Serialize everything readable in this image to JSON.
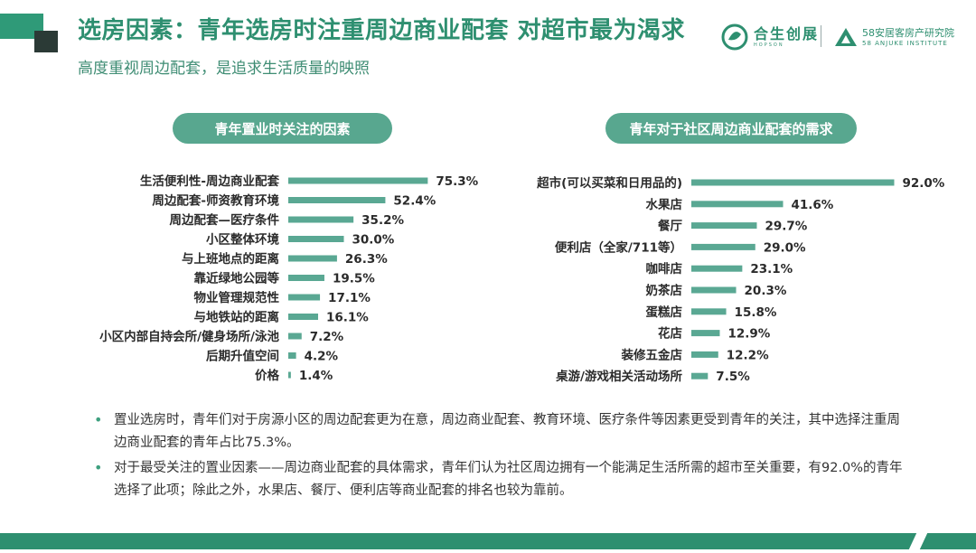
{
  "header": {
    "title": "选房因素：青年选房时注重周边商业配套 对超市最为渴求",
    "subtitle": "高度重视周边配套，是追求生活质量的映照"
  },
  "logos": {
    "brand1_cn": "合生创展",
    "brand1_en": "HOPSON",
    "brand2_cn": "58安居客房产研究院",
    "brand2_en": "58 ANJUKE INSTITUTE"
  },
  "chart_data": [
    {
      "type": "bar",
      "orientation": "horizontal",
      "title": "青年置业时关注的因素",
      "categories": [
        "生活便利性-周边商业配套",
        "周边配套-师资教育环境",
        "周边配套—医疗条件",
        "小区整体环境",
        "与上班地点的距离",
        "靠近绿地公园等",
        "物业管理规范性",
        "与地铁站的距离",
        "小区内部自持会所/健身场所/泳池",
        "后期升值空间",
        "价格"
      ],
      "values": [
        75.3,
        52.4,
        35.2,
        30.0,
        26.3,
        19.5,
        17.1,
        16.1,
        7.2,
        4.2,
        1.4
      ],
      "value_labels": [
        "75.3%",
        "52.4%",
        "35.2%",
        "30.0%",
        "26.3%",
        "19.5%",
        "17.1%",
        "16.1%",
        "7.2%",
        "4.2%",
        "1.4%"
      ],
      "unit": "%",
      "xlim": [
        0,
        100
      ],
      "color": "#5aa893"
    },
    {
      "type": "bar",
      "orientation": "horizontal",
      "title": "青年对于社区周边商业配套的需求",
      "categories": [
        "超市(可以买菜和日用品的)",
        "水果店",
        "餐厅",
        "便利店（全家/711等）",
        "咖啡店",
        "奶茶店",
        "蛋糕店",
        "花店",
        "装修五金店",
        "桌游/游戏相关活动场所"
      ],
      "values": [
        92.0,
        41.6,
        29.7,
        29.0,
        23.1,
        20.3,
        15.8,
        12.9,
        12.2,
        7.5
      ],
      "value_labels": [
        "92.0%",
        "41.6%",
        "29.7%",
        "29.0%",
        "23.1%",
        "20.3%",
        "15.8%",
        "12.9%",
        "12.2%",
        "7.5%"
      ],
      "unit": "%",
      "xlim": [
        0,
        100
      ],
      "color": "#5aa893"
    }
  ],
  "notes": [
    "置业选房时，青年们对于房源小区的周边配套更为在意，周边商业配套、教育环境、医疗条件等因素更受到青年的关注，其中选择注重周边商业配套的青年占比75.3%。",
    "对于最受关注的置业因素——周边商业配套的具体需求，青年们认为社区周边拥有一个能满足生活所需的超市至关重要，有92.0%的青年选择了此项；除此之外，水果店、餐厅、便利店等商业配套的排名也较为靠前。"
  ],
  "bullet_symbol": "•"
}
